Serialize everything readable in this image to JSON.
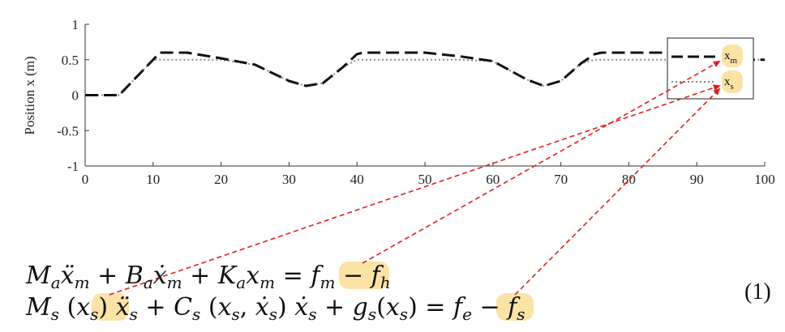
{
  "chart_data": {
    "type": "line",
    "title": "",
    "xlabel": "",
    "ylabel": "Position x (m)",
    "xlim": [
      0,
      100
    ],
    "ylim": [
      -1,
      1
    ],
    "xticks": [
      0,
      10,
      20,
      30,
      40,
      50,
      60,
      70,
      80,
      90,
      100
    ],
    "yticks": [
      -1,
      -0.5,
      0,
      0.5,
      1
    ],
    "ytick_labels": [
      "-1",
      "-0.5",
      "0",
      "0.5",
      "1"
    ],
    "grid": false,
    "legend_position": "top-right",
    "series": [
      {
        "name": "x_m",
        "style": "dashed",
        "color": "#111111",
        "x": [
          0,
          5,
          10,
          11,
          15,
          20,
          25,
          30,
          32.5,
          35,
          38,
          40,
          41,
          45,
          50,
          55,
          60,
          65,
          67.5,
          70,
          73,
          75,
          76,
          80,
          85,
          90,
          95,
          100
        ],
        "y": [
          0,
          0,
          0.5,
          0.6,
          0.6,
          0.52,
          0.43,
          0.2,
          0.13,
          0.17,
          0.4,
          0.58,
          0.6,
          0.6,
          0.6,
          0.55,
          0.48,
          0.22,
          0.13,
          0.2,
          0.45,
          0.58,
          0.6,
          0.6,
          0.6,
          0.6,
          0.5,
          0.5
        ]
      },
      {
        "name": "x_s",
        "style": "dotted",
        "color": "#888888",
        "x": [
          0,
          5,
          10,
          11,
          15,
          20,
          25,
          30,
          32.5,
          35,
          38,
          40,
          41,
          45,
          50,
          55,
          60,
          65,
          67.5,
          70,
          73,
          75,
          76,
          80,
          85,
          90,
          95,
          100
        ],
        "y": [
          0,
          0,
          0.5,
          0.5,
          0.5,
          0.5,
          0.43,
          0.2,
          0.13,
          0.17,
          0.4,
          0.5,
          0.5,
          0.5,
          0.5,
          0.5,
          0.48,
          0.22,
          0.13,
          0.2,
          0.45,
          0.5,
          0.5,
          0.5,
          0.5,
          0.5,
          0.5,
          0.5
        ]
      }
    ]
  },
  "legend": {
    "items": [
      {
        "base": "x",
        "sub": "m"
      },
      {
        "base": "x",
        "sub": "s"
      }
    ]
  },
  "highlight_color": "#fbe3a6",
  "arrow_color": "#e02020",
  "equations": {
    "number": "(1)"
  }
}
